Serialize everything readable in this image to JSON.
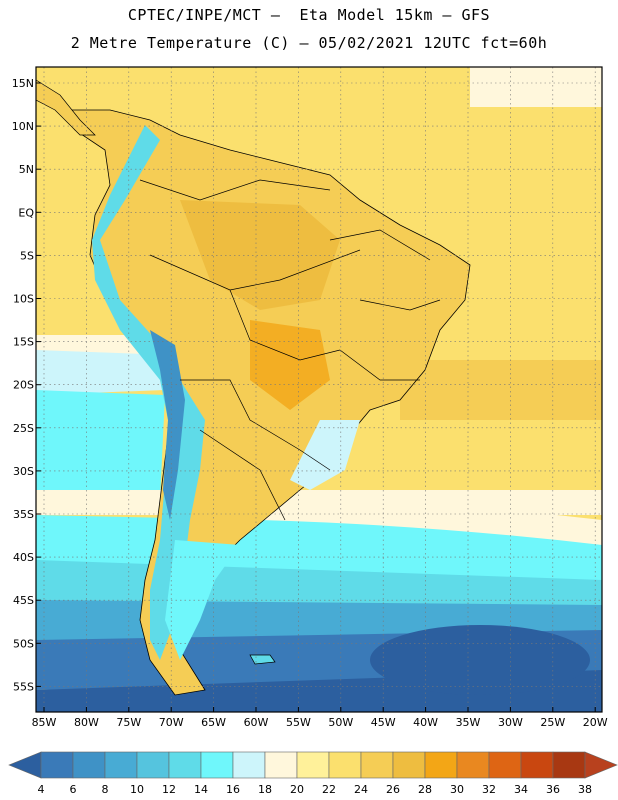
{
  "title_line1": "CPTEC/INPE/MCT –  Eta Model 15km – GFS",
  "title_line2": "2 Metre Temperature (C) – 05/02/2021 12UTC fct=60h",
  "map": {
    "lat_labels": [
      "15N",
      "10N",
      "5N",
      "EQ",
      "5S",
      "10S",
      "15S",
      "20S",
      "25S",
      "30S",
      "35S",
      "40S",
      "45S",
      "50S",
      "55S"
    ],
    "lon_labels": [
      "85W",
      "80W",
      "75W",
      "70W",
      "65W",
      "60W",
      "55W",
      "50W",
      "45W",
      "40W",
      "35W",
      "30W",
      "25W",
      "20W"
    ]
  },
  "colorbar": {
    "labels": [
      "4",
      "6",
      "8",
      "10",
      "12",
      "14",
      "16",
      "18",
      "20",
      "22",
      "24",
      "26",
      "28",
      "30",
      "32",
      "34",
      "36",
      "38"
    ],
    "colors": [
      "#2c5f9f",
      "#3a7ab8",
      "#3f92c6",
      "#48abd4",
      "#55c4de",
      "#5fdbe8",
      "#6ff7fb",
      "#cdf5fb",
      "#fff7dc",
      "#fff19a",
      "#fbe06e",
      "#f5cd55",
      "#eebd40",
      "#f3a616",
      "#e98820",
      "#de6514",
      "#c94710",
      "#a83812",
      "#b8411e"
    ]
  }
}
